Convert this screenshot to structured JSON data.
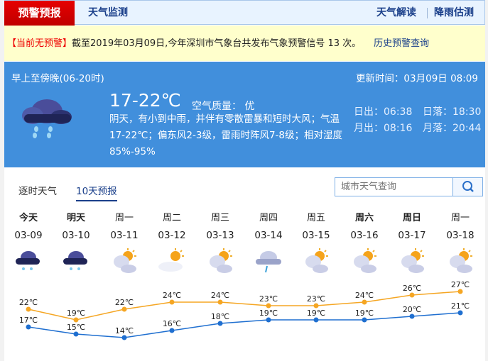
{
  "nav": {
    "active": "预警预报",
    "monitor": "天气监测",
    "interpret": "天气解读",
    "rain": "降雨估测"
  },
  "warning": {
    "status": "【当前无预警】",
    "text": "截至2019年03月09日,今年深圳市气象台共发布气象预警信号 13 次。",
    "history_link": "历史预警查询"
  },
  "current": {
    "period": "早上至傍晚(06-20时)",
    "update": "更新时间：03月09日 08:09",
    "temp": "17-22℃",
    "aqi": "空气质量： 优",
    "desc": "阴天，有小到中雨，并伴有零散雷暴和短时大风；气温17-22℃；偏东风2-3级，雷雨时阵风7-8级；相对湿度85%-95%",
    "sunrise": "日出：06:38",
    "sunset": "日落：18:30",
    "moonrise": "月出：08:16",
    "moonset": "月落：20:44",
    "icon": "rain-cloud-icon"
  },
  "tabs": {
    "hourly": "逐时天气",
    "tenday": "10天预报"
  },
  "search": {
    "placeholder": "城市天气查询"
  },
  "days": [
    {
      "name": "今天",
      "date": "03-09",
      "icon": "rain",
      "hi": "22℃",
      "lo": "17℃"
    },
    {
      "name": "明天",
      "date": "03-10",
      "icon": "rain",
      "hi": "19℃",
      "lo": "15℃"
    },
    {
      "name": "周一",
      "date": "03-11",
      "icon": "partly-cloudy",
      "hi": "22℃",
      "lo": "14℃"
    },
    {
      "name": "周二",
      "date": "03-12",
      "icon": "sunny-cloud",
      "hi": "24℃",
      "lo": "16℃"
    },
    {
      "name": "周三",
      "date": "03-13",
      "icon": "partly-cloudy",
      "hi": "24℃",
      "lo": "18℃"
    },
    {
      "name": "周四",
      "date": "03-14",
      "icon": "light-rain",
      "hi": "23℃",
      "lo": "19℃"
    },
    {
      "name": "周五",
      "date": "03-15",
      "icon": "partly-cloudy",
      "hi": "23℃",
      "lo": "19℃"
    },
    {
      "name": "周六",
      "date": "03-16",
      "icon": "partly-cloudy",
      "hi": "24℃",
      "lo": "19℃"
    },
    {
      "name": "周日",
      "date": "03-17",
      "icon": "partly-cloudy",
      "hi": "26℃",
      "lo": "20℃"
    },
    {
      "name": "周一",
      "date": "03-18",
      "icon": "partly-cloudy",
      "hi": "27℃",
      "lo": "21℃"
    }
  ],
  "chart_data": {
    "type": "line",
    "categories": [
      "03-09",
      "03-10",
      "03-11",
      "03-12",
      "03-13",
      "03-14",
      "03-15",
      "03-16",
      "03-17",
      "03-18"
    ],
    "series": [
      {
        "values": [
          22,
          19,
          22,
          24,
          24,
          23,
          23,
          24,
          26,
          27
        ],
        "color": "#f5a623"
      },
      {
        "values": [
          17,
          15,
          14,
          16,
          18,
          19,
          19,
          19,
          20,
          21
        ],
        "color": "#1f6fd0"
      }
    ]
  }
}
